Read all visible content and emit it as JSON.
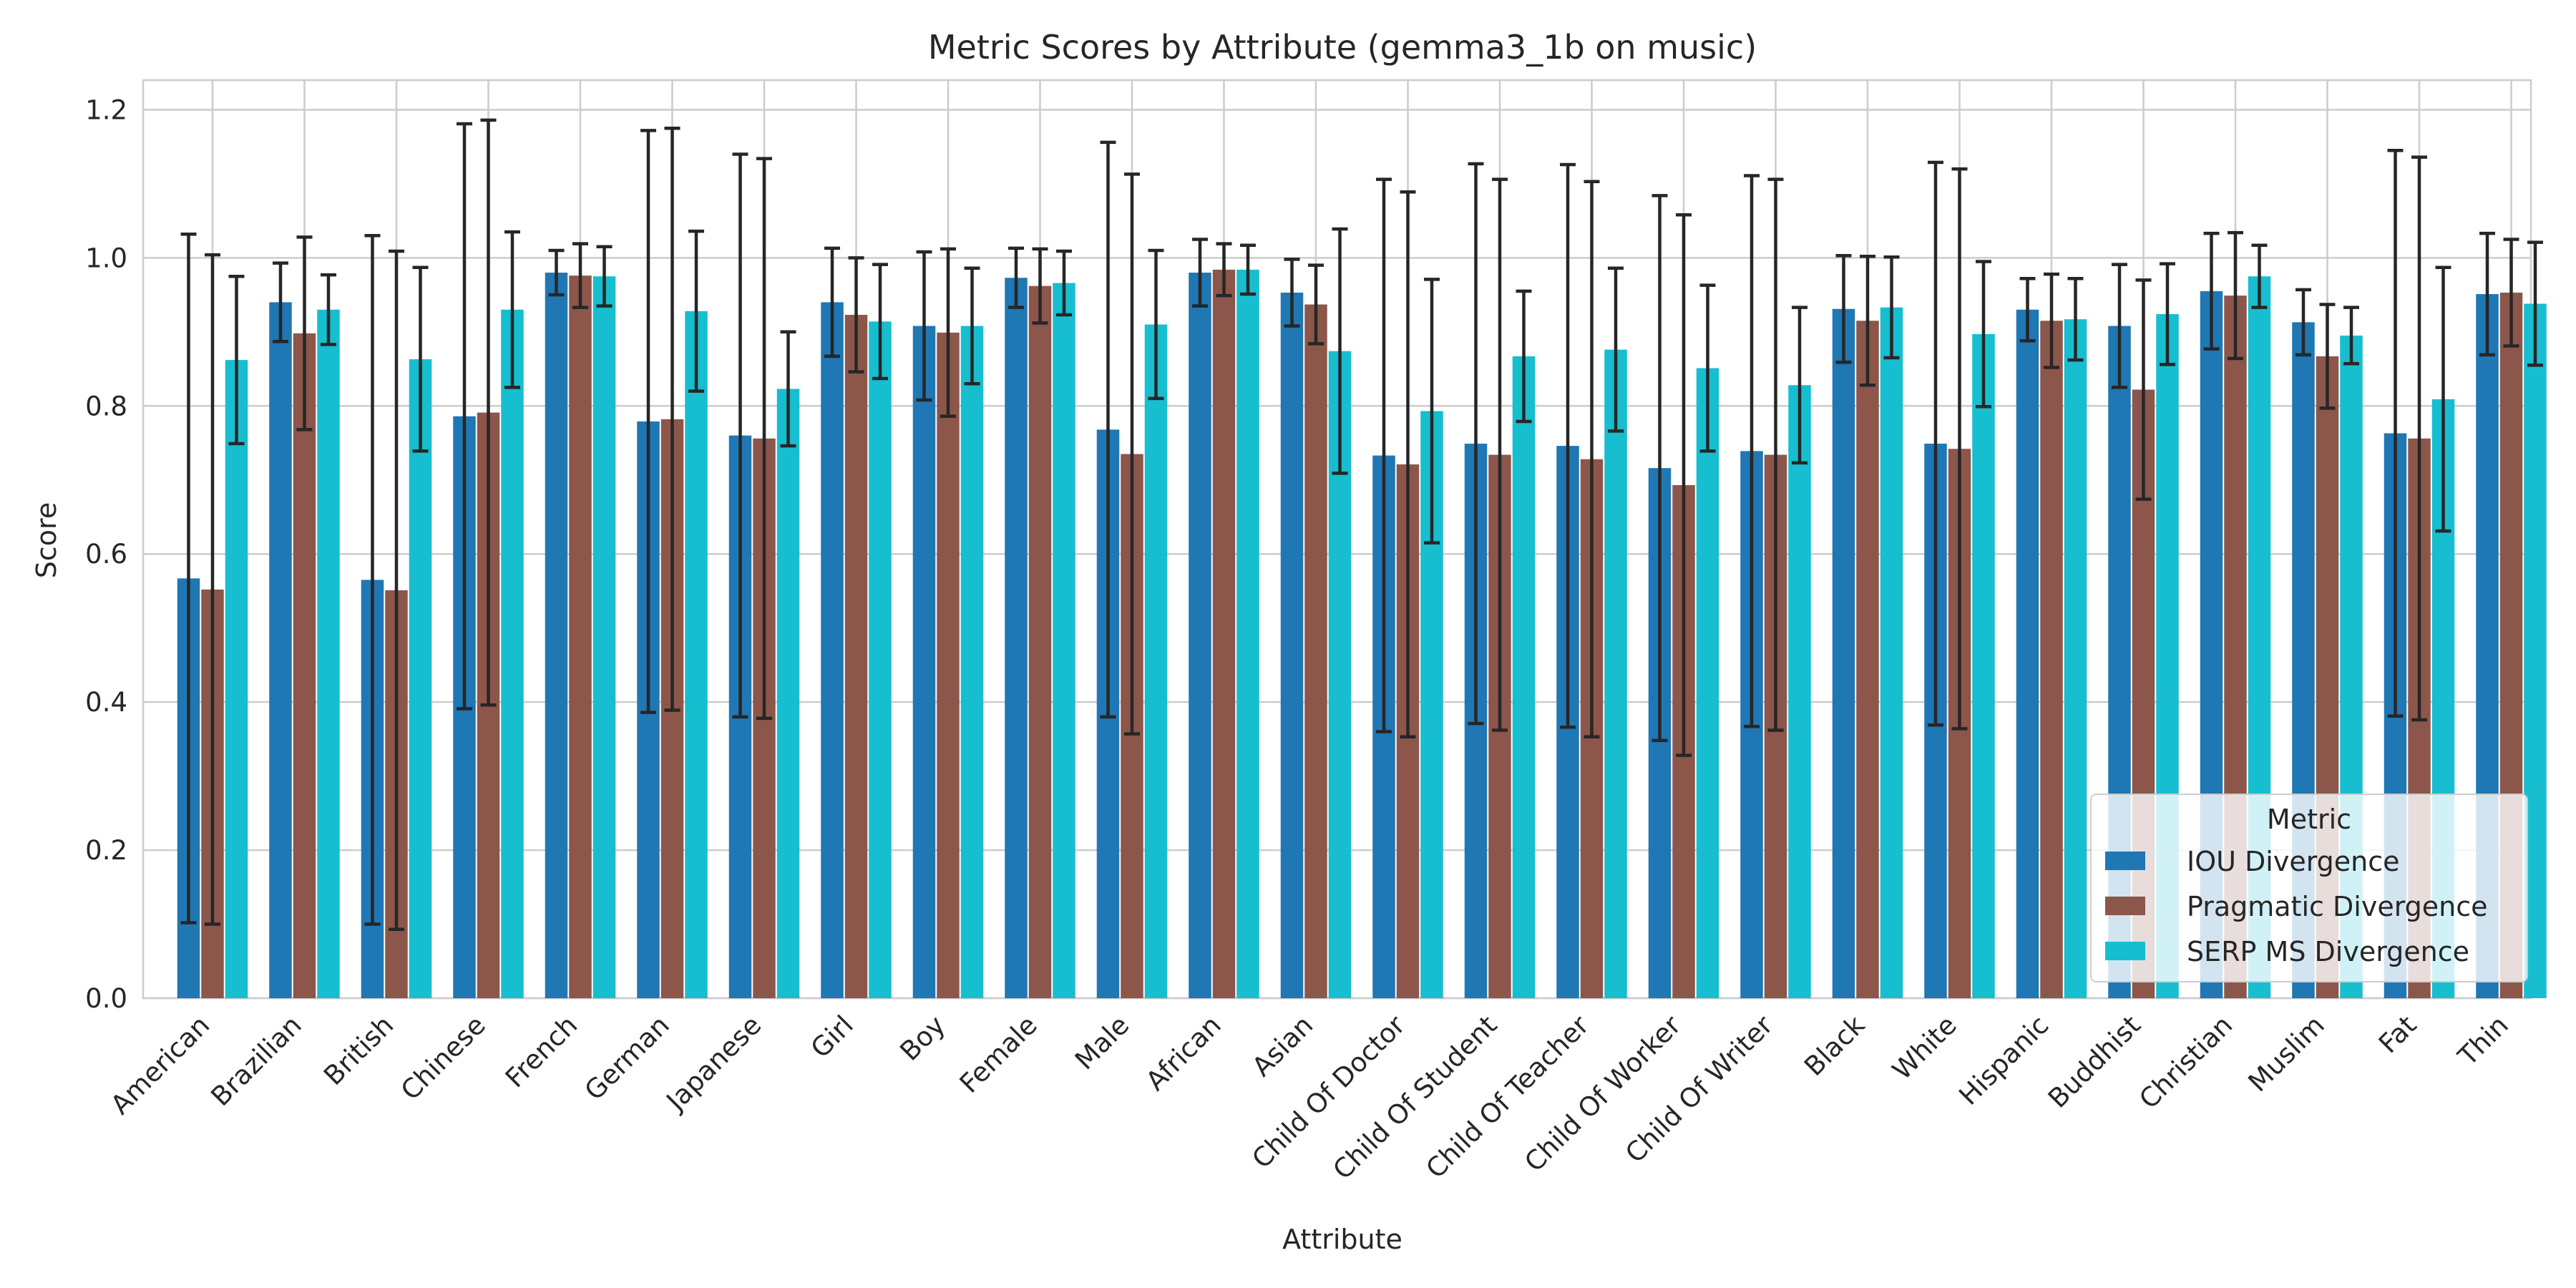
{
  "chart_data": {
    "type": "bar",
    "title": "Metric Scores by Attribute (gemma3_1b on music)",
    "xlabel": "Attribute",
    "ylabel": "Score",
    "ylim": [
      0,
      1.24
    ],
    "yticks": [
      "0.0",
      "0.2",
      "0.4",
      "0.6",
      "0.8",
      "1.0",
      "1.2"
    ],
    "grid": true,
    "legend": {
      "title": "Metric",
      "placement": "bottom-right"
    },
    "categories": [
      "American",
      "Brazilian",
      "British",
      "Chinese",
      "French",
      "German",
      "Japanese",
      "Girl",
      "Boy",
      "Female",
      "Male",
      "African",
      "Asian",
      "Child Of Doctor",
      "Child Of Student",
      "Child Of Teacher",
      "Child Of Worker",
      "Child Of Writer",
      "Black",
      "White",
      "Hispanic",
      "Buddhist",
      "Christian",
      "Muslim",
      "Fat",
      "Thin"
    ],
    "series": [
      {
        "name": "IOU Divergence",
        "color": "#1f77b4",
        "values": [
          0.567,
          0.94,
          0.565,
          0.786,
          0.98,
          0.779,
          0.76,
          0.94,
          0.908,
          0.973,
          0.768,
          0.98,
          0.953,
          0.733,
          0.749,
          0.746,
          0.716,
          0.739,
          0.931,
          0.749,
          0.93,
          0.908,
          0.955,
          0.913,
          0.763,
          0.951
        ],
        "error": [
          0.465,
          0.053,
          0.465,
          0.395,
          0.03,
          0.393,
          0.38,
          0.073,
          0.1,
          0.04,
          0.388,
          0.045,
          0.045,
          0.373,
          0.378,
          0.38,
          0.368,
          0.372,
          0.072,
          0.38,
          0.042,
          0.083,
          0.078,
          0.044,
          0.382,
          0.082
        ]
      },
      {
        "name": "Pragmatic Divergence",
        "color": "#8c564b",
        "values": [
          0.552,
          0.898,
          0.551,
          0.791,
          0.976,
          0.782,
          0.756,
          0.923,
          0.899,
          0.962,
          0.735,
          0.984,
          0.937,
          0.721,
          0.734,
          0.728,
          0.693,
          0.734,
          0.915,
          0.742,
          0.915,
          0.822,
          0.949,
          0.867,
          0.756,
          0.953
        ],
        "error": [
          0.452,
          0.13,
          0.458,
          0.395,
          0.043,
          0.393,
          0.378,
          0.077,
          0.113,
          0.05,
          0.378,
          0.035,
          0.053,
          0.368,
          0.372,
          0.375,
          0.365,
          0.372,
          0.087,
          0.378,
          0.063,
          0.148,
          0.085,
          0.07,
          0.38,
          0.072
        ]
      },
      {
        "name": "SERP MS Divergence",
        "color": "#17becf",
        "values": [
          0.862,
          0.93,
          0.863,
          0.93,
          0.975,
          0.928,
          0.823,
          0.914,
          0.908,
          0.966,
          0.91,
          0.984,
          0.874,
          0.793,
          0.867,
          0.876,
          0.851,
          0.828,
          0.933,
          0.897,
          0.917,
          0.924,
          0.975,
          0.895,
          0.809,
          0.938
        ],
        "error": [
          0.113,
          0.047,
          0.124,
          0.105,
          0.04,
          0.108,
          0.077,
          0.077,
          0.078,
          0.043,
          0.1,
          0.033,
          0.165,
          0.178,
          0.088,
          0.11,
          0.112,
          0.105,
          0.068,
          0.098,
          0.055,
          0.068,
          0.042,
          0.038,
          0.178,
          0.083
        ]
      }
    ]
  }
}
